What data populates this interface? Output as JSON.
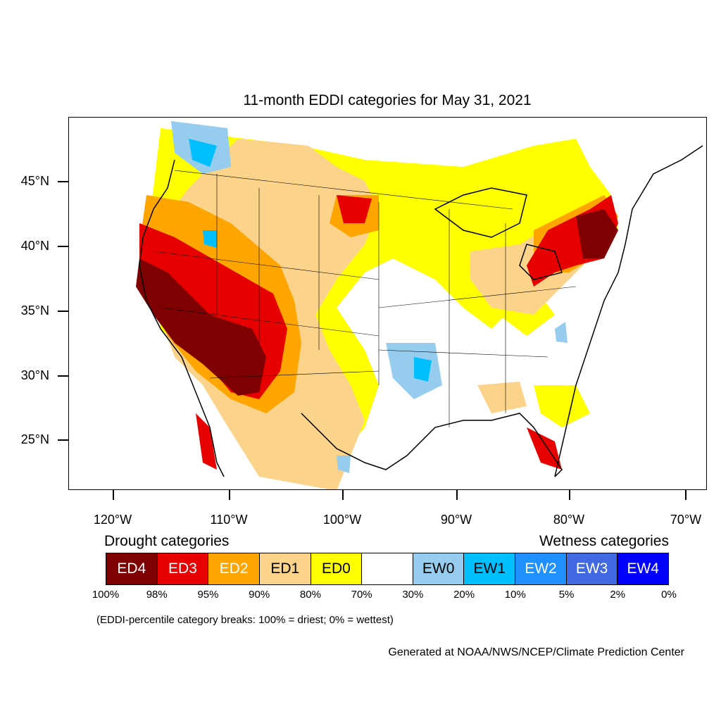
{
  "title": "11-month EDDI categories for May 31, 2021",
  "lat_labels": [
    "45°N",
    "40°N",
    "35°N",
    "30°N",
    "25°N"
  ],
  "lon_labels": [
    "120°W",
    "110°W",
    "100°W",
    "90°W",
    "80°W",
    "70°W"
  ],
  "legend": {
    "drought_title": "Drought categories",
    "wetness_title": "Wetness categories",
    "categories": [
      {
        "label": "ED4",
        "color": "#7f0000",
        "text_color": "#ffffff"
      },
      {
        "label": "ED3",
        "color": "#e60000",
        "text_color": "#ffffff"
      },
      {
        "label": "ED2",
        "color": "#ffa500",
        "text_color": "#ffffff"
      },
      {
        "label": "ED1",
        "color": "#fcd38a",
        "text_color": "#000000"
      },
      {
        "label": "ED0",
        "color": "#ffff00",
        "text_color": "#000000"
      },
      {
        "label": "",
        "color": "#ffffff",
        "text_color": "#000000"
      },
      {
        "label": "EW0",
        "color": "#96cdee",
        "text_color": "#000000"
      },
      {
        "label": "EW1",
        "color": "#00bfff",
        "text_color": "#000000"
      },
      {
        "label": "EW2",
        "color": "#1e90ff",
        "text_color": "#ffffff"
      },
      {
        "label": "EW3",
        "color": "#4169e1",
        "text_color": "#ffffff"
      },
      {
        "label": "EW4",
        "color": "#0000ff",
        "text_color": "#ffffff"
      }
    ],
    "breaks": [
      "100%",
      "98%",
      "95%",
      "90%",
      "80%",
      "70%",
      "30%",
      "20%",
      "10%",
      "5%",
      "2%",
      "0%"
    ]
  },
  "footnote": "(EDDI-percentile category breaks: 100% = driest; 0% = wettest)",
  "credit": "Generated at NOAA/NWS/NCEP/Climate Prediction Center"
}
